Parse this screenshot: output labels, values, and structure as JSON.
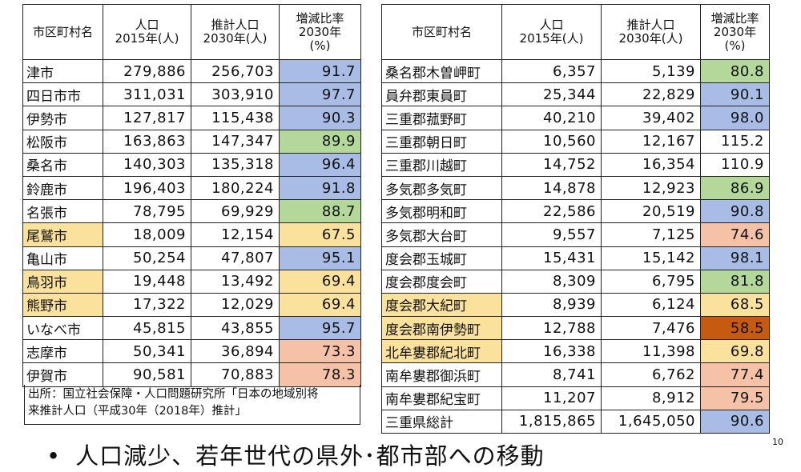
{
  "headers": {
    "name": "市区町村名",
    "pop2015": [
      "人口",
      "2015年(人)"
    ],
    "pop2030": [
      "推計人口",
      "2030年(人)"
    ],
    "ratio": [
      "増減比率",
      "2030年",
      "(%)"
    ]
  },
  "left_rows": [
    {
      "name": "津市",
      "p2015": "279,886",
      "p2030": "256,703",
      "ratio": "91.7",
      "color": "blue",
      "highlight": false
    },
    {
      "name": "四日市市",
      "p2015": "311,031",
      "p2030": "303,910",
      "ratio": "97.7",
      "color": "blue",
      "highlight": false
    },
    {
      "name": "伊勢市",
      "p2015": "127,817",
      "p2030": "115,438",
      "ratio": "90.3",
      "color": "blue",
      "highlight": false
    },
    {
      "name": "松阪市",
      "p2015": "163,863",
      "p2030": "147,347",
      "ratio": "89.9",
      "color": "green",
      "highlight": false
    },
    {
      "name": "桑名市",
      "p2015": "140,303",
      "p2030": "135,318",
      "ratio": "96.4",
      "color": "blue",
      "highlight": false
    },
    {
      "name": "鈴鹿市",
      "p2015": "196,403",
      "p2030": "180,224",
      "ratio": "91.8",
      "color": "blue",
      "highlight": false
    },
    {
      "name": "名張市",
      "p2015": "78,795",
      "p2030": "69,929",
      "ratio": "88.7",
      "color": "green",
      "highlight": false
    },
    {
      "name": "尾鷲市",
      "p2015": "18,009",
      "p2030": "12,154",
      "ratio": "67.5",
      "color": "yellow",
      "highlight": true
    },
    {
      "name": "亀山市",
      "p2015": "50,254",
      "p2030": "47,807",
      "ratio": "95.1",
      "color": "blue",
      "highlight": false
    },
    {
      "name": "鳥羽市",
      "p2015": "19,448",
      "p2030": "13,492",
      "ratio": "69.4",
      "color": "yellow",
      "highlight": true
    },
    {
      "name": "熊野市",
      "p2015": "17,322",
      "p2030": "12,029",
      "ratio": "69.4",
      "color": "yellow",
      "highlight": true
    },
    {
      "name": "いなべ市",
      "p2015": "45,815",
      "p2030": "43,855",
      "ratio": "95.7",
      "color": "blue",
      "highlight": false
    },
    {
      "name": "志摩市",
      "p2015": "50,341",
      "p2030": "36,894",
      "ratio": "73.3",
      "color": "salmon",
      "highlight": false
    },
    {
      "name": "伊賀市",
      "p2015": "90,581",
      "p2030": "70,883",
      "ratio": "78.3",
      "color": "salmon",
      "highlight": false
    }
  ],
  "right_rows": [
    {
      "name": "桑名郡木曽岬町",
      "p2015": "6,357",
      "p2030": "5,139",
      "ratio": "80.8",
      "color": "green",
      "highlight": false
    },
    {
      "name": "員弁郡東員町",
      "p2015": "25,344",
      "p2030": "22,829",
      "ratio": "90.1",
      "color": "blue",
      "highlight": false
    },
    {
      "name": "三重郡菰野町",
      "p2015": "40,210",
      "p2030": "39,402",
      "ratio": "98.0",
      "color": "blue",
      "highlight": false
    },
    {
      "name": "三重郡朝日町",
      "p2015": "10,560",
      "p2030": "12,167",
      "ratio": "115.2",
      "color": "none",
      "highlight": false
    },
    {
      "name": "三重郡川越町",
      "p2015": "14,752",
      "p2030": "16,354",
      "ratio": "110.9",
      "color": "none",
      "highlight": false
    },
    {
      "name": "多気郡多気町",
      "p2015": "14,878",
      "p2030": "12,923",
      "ratio": "86.9",
      "color": "green",
      "highlight": false
    },
    {
      "name": "多気郡明和町",
      "p2015": "22,586",
      "p2030": "20,519",
      "ratio": "90.8",
      "color": "blue",
      "highlight": false
    },
    {
      "name": "多気郡大台町",
      "p2015": "9,557",
      "p2030": "7,125",
      "ratio": "74.6",
      "color": "salmon",
      "highlight": false
    },
    {
      "name": "度会郡玉城町",
      "p2015": "15,431",
      "p2030": "15,142",
      "ratio": "98.1",
      "color": "blue",
      "highlight": false
    },
    {
      "name": "度会郡度会町",
      "p2015": "8,309",
      "p2030": "6,795",
      "ratio": "81.8",
      "color": "green",
      "highlight": false
    },
    {
      "name": "度会郡大紀町",
      "p2015": "8,939",
      "p2030": "6,124",
      "ratio": "68.5",
      "color": "yellow",
      "highlight": true
    },
    {
      "name": "度会郡南伊勢町",
      "p2015": "12,788",
      "p2030": "7,476",
      "ratio": "58.5",
      "color": "orange",
      "highlight": true
    },
    {
      "name": "北牟婁郡紀北町",
      "p2015": "16,338",
      "p2030": "11,398",
      "ratio": "69.8",
      "color": "yellow",
      "highlight": true
    },
    {
      "name": "南牟婁郡御浜町",
      "p2015": "8,741",
      "p2030": "6,762",
      "ratio": "77.4",
      "color": "salmon",
      "highlight": false
    },
    {
      "name": "南牟婁郡紀宝町",
      "p2015": "11,207",
      "p2030": "8,912",
      "ratio": "79.5",
      "color": "salmon",
      "highlight": false
    },
    {
      "name": "三重県総計",
      "p2015": "1,815,865",
      "p2030": "1,645,050",
      "ratio": "90.6",
      "color": "blue",
      "highlight": false
    }
  ],
  "source": [
    "出所：国立社会保障・人口問題研究所「日本の地域別将",
    "来推計人口（平成30年（2018年）推計」"
  ],
  "bullet": {
    "symbol": "•",
    "text": "人口減少、若年世代の県外･都市部への移動"
  },
  "page_number": "10",
  "colors": {
    "blue": "#a9bce6",
    "green": "#b3d89a",
    "yellow": "#fbe29c",
    "salmon": "#f6c2a7",
    "orange": "#c65a11"
  }
}
